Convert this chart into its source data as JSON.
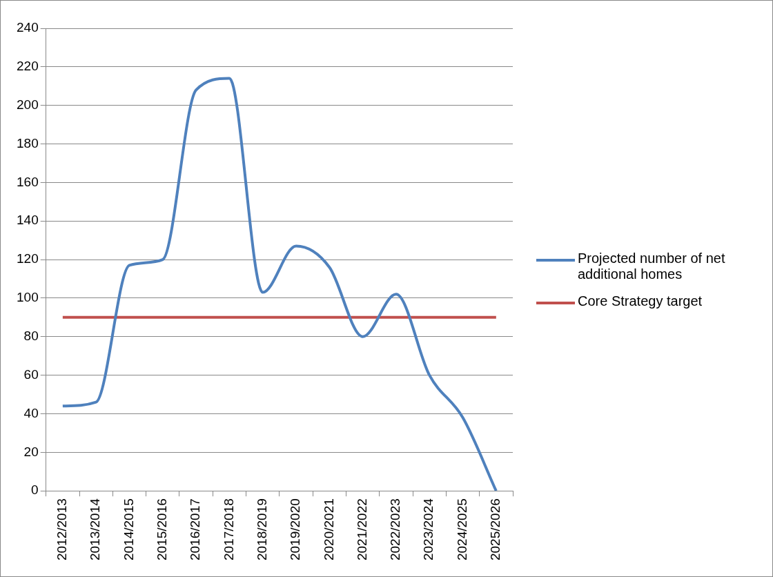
{
  "chart_data": {
    "type": "line",
    "categories": [
      "2012/2013",
      "2013/2014",
      "2014/2015",
      "2015/2016",
      "2016/2017",
      "2017/2018",
      "2018/2019",
      "2019/2020",
      "2020/2021",
      "2021/2022",
      "2022/2023",
      "2023/2024",
      "2024/2025",
      "2025/2026"
    ],
    "series": [
      {
        "name": "Projected number of net additional homes",
        "color": "#4f81bd",
        "values": [
          44,
          46,
          117,
          120,
          208,
          214,
          103,
          127,
          116,
          80,
          102,
          60,
          38,
          0
        ]
      },
      {
        "name": "Core Strategy target",
        "color": "#c0504d",
        "values": [
          90,
          90,
          90,
          90,
          90,
          90,
          90,
          90,
          90,
          90,
          90,
          90,
          90,
          90
        ]
      }
    ],
    "ylim": [
      0,
      240
    ],
    "yticks": [
      0,
      20,
      40,
      60,
      80,
      100,
      120,
      140,
      160,
      180,
      200,
      220,
      240
    ],
    "grid": "y",
    "legend": "right",
    "marker": "none",
    "line_style": "solid"
  }
}
